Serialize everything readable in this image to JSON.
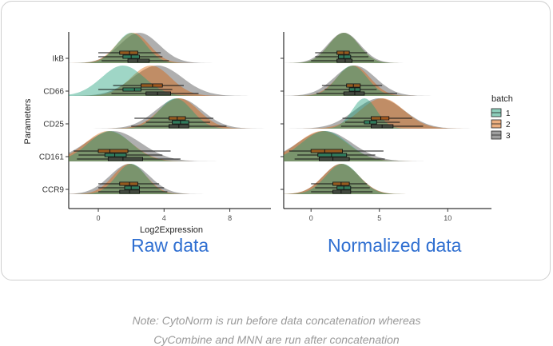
{
  "chart_data": {
    "type": "ridgeline-boxplot",
    "ylabel": "Parameters",
    "categories": [
      "IkB",
      "CD66",
      "CD25",
      "CD161",
      "CCR9"
    ],
    "legend": {
      "title": "batch",
      "entries": [
        "1",
        "2",
        "3"
      ],
      "placement": "right"
    },
    "colors": {
      "1": "#1b9e77",
      "2": "#d95f02",
      "3": "#404040"
    },
    "panels": [
      {
        "caption": "Raw data",
        "xlabel": "Log2Expression",
        "xticks": [
          0,
          4,
          8
        ],
        "xlim": [
          -1.8,
          10.5
        ],
        "rows": [
          {
            "marker": "IkB",
            "series": [
              {
                "batch": "1",
                "mode": 2.0,
                "sd": 0.9,
                "box": [
                  1.5,
                  2.0,
                  2.5
                ],
                "whisker": [
                  0.0,
                  3.9
                ]
              },
              {
                "batch": "2",
                "mode": 2.1,
                "sd": 1.0,
                "box": [
                  1.3,
                  1.9,
                  2.4
                ],
                "whisker": [
                  0.0,
                  3.8
                ]
              },
              {
                "batch": "3",
                "mode": 2.5,
                "sd": 1.2,
                "box": [
                  1.8,
                  2.4,
                  3.1
                ],
                "whisker": [
                  0.2,
                  4.3
                ]
              }
            ]
          },
          {
            "marker": "CD66",
            "series": [
              {
                "batch": "1",
                "mode": 1.5,
                "sd": 1.3,
                "box": [
                  1.5,
                  2.2,
                  2.6
                ],
                "whisker": [
                  0.0,
                  4.5
                ]
              },
              {
                "batch": "2",
                "mode": 3.2,
                "sd": 1.2,
                "box": [
                  2.6,
                  3.3,
                  3.9
                ],
                "whisker": [
                  0.9,
                  5.2
                ]
              },
              {
                "batch": "3",
                "mode": 3.6,
                "sd": 1.5,
                "box": [
                  2.9,
                  3.6,
                  4.4
                ],
                "whisker": [
                  0.8,
                  6.1
                ]
              }
            ]
          },
          {
            "marker": "CD25",
            "series": [
              {
                "batch": "1",
                "mode": 4.7,
                "sd": 1.0,
                "box": [
                  4.5,
                  5.0,
                  5.5
                ],
                "whisker": [
                  2.9,
                  6.8
                ]
              },
              {
                "batch": "2",
                "mode": 4.9,
                "sd": 1.2,
                "box": [
                  4.3,
                  4.8,
                  5.3
                ],
                "whisker": [
                  2.2,
                  7.0
                ]
              },
              {
                "batch": "3",
                "mode": 4.9,
                "sd": 1.4,
                "box": [
                  4.3,
                  4.9,
                  5.5
                ],
                "whisker": [
                  2.0,
                  7.8
                ]
              }
            ]
          },
          {
            "marker": "CD161",
            "series": [
              {
                "batch": "1",
                "mode": 0.7,
                "sd": 1.3,
                "box": [
                  0.4,
                  1.0,
                  1.7
                ],
                "whisker": [
                  -1.2,
                  3.9
                ]
              },
              {
                "batch": "2",
                "mode": 0.6,
                "sd": 1.4,
                "box": [
                  0.0,
                  0.7,
                  1.8
                ],
                "whisker": [
                  -1.5,
                  4.4
                ]
              },
              {
                "batch": "3",
                "mode": 0.9,
                "sd": 1.7,
                "box": [
                  0.6,
                  1.5,
                  2.7
                ],
                "whisker": [
                  -1.3,
                  5.0
                ]
              }
            ]
          },
          {
            "marker": "CCR9",
            "series": [
              {
                "batch": "1",
                "mode": 2.0,
                "sd": 0.9,
                "box": [
                  1.6,
                  2.0,
                  2.5
                ],
                "whisker": [
                  0.0,
                  4.0
                ]
              },
              {
                "batch": "2",
                "mode": 1.9,
                "sd": 1.0,
                "box": [
                  1.3,
                  1.9,
                  2.4
                ],
                "whisker": [
                  0.0,
                  3.7
                ]
              },
              {
                "batch": "3",
                "mode": 1.9,
                "sd": 1.2,
                "box": [
                  1.3,
                  1.9,
                  2.5
                ],
                "whisker": [
                  0.0,
                  4.2
                ]
              }
            ]
          }
        ]
      },
      {
        "caption": "Normalized data",
        "xlabel": "",
        "xticks": [
          0,
          5,
          10
        ],
        "xlim": [
          -2.0,
          13.2
        ],
        "rows": [
          {
            "marker": "IkB",
            "series": [
              {
                "batch": "1",
                "mode": 2.4,
                "sd": 1.1,
                "box": [
                  2.0,
                  2.4,
                  2.9
                ],
                "whisker": [
                  0.3,
                  4.2
                ]
              },
              {
                "batch": "2",
                "mode": 2.4,
                "sd": 1.1,
                "box": [
                  1.9,
                  2.4,
                  2.8
                ],
                "whisker": [
                  0.3,
                  4.1
                ]
              },
              {
                "batch": "3",
                "mode": 2.4,
                "sd": 1.2,
                "box": [
                  1.9,
                  2.5,
                  3.0
                ],
                "whisker": [
                  0.0,
                  4.6
                ]
              }
            ]
          },
          {
            "marker": "CD66",
            "series": [
              {
                "batch": "1",
                "mode": 3.0,
                "sd": 1.1,
                "box": [
                  2.8,
                  3.2,
                  3.6
                ],
                "whisker": [
                  1.0,
                  4.8
                ]
              },
              {
                "batch": "2",
                "mode": 3.1,
                "sd": 1.2,
                "box": [
                  2.6,
                  3.1,
                  3.6
                ],
                "whisker": [
                  0.8,
                  5.2
                ]
              },
              {
                "batch": "3",
                "mode": 3.2,
                "sd": 1.5,
                "box": [
                  2.4,
                  3.2,
                  3.9
                ],
                "whisker": [
                  0.4,
                  6.3
                ]
              }
            ]
          },
          {
            "marker": "CD25",
            "series": [
              {
                "batch": "1",
                "mode": 3.9,
                "sd": 0.9,
                "box": [
                  3.9,
                  4.3,
                  4.8
                ],
                "whisker": [
                  2.5,
                  6.5
                ]
              },
              {
                "batch": "2",
                "mode": 5.2,
                "sd": 1.6,
                "box": [
                  4.4,
                  5.1,
                  5.7
                ],
                "whisker": [
                  2.3,
                  7.4
                ]
              },
              {
                "batch": "3",
                "mode": 5.0,
                "sd": 1.8,
                "box": [
                  4.4,
                  5.2,
                  6.0
                ],
                "whisker": [
                  2.2,
                  8.2
                ]
              }
            ]
          },
          {
            "marker": "CD161",
            "series": [
              {
                "batch": "1",
                "mode": 1.0,
                "sd": 1.7,
                "box": [
                  0.5,
                  1.5,
                  2.6
                ],
                "whisker": [
                  -1.0,
                  4.7
                ]
              },
              {
                "batch": "2",
                "mode": 0.8,
                "sd": 1.8,
                "box": [
                  0.0,
                  1.0,
                  2.3
                ],
                "whisker": [
                  -1.6,
                  5.3
                ]
              },
              {
                "batch": "3",
                "mode": 1.0,
                "sd": 2.0,
                "box": [
                  0.6,
                  1.6,
                  2.8
                ],
                "whisker": [
                  -1.2,
                  5.4
                ]
              }
            ]
          },
          {
            "marker": "CCR9",
            "series": [
              {
                "batch": "1",
                "mode": 2.3,
                "sd": 1.2,
                "box": [
                  1.9,
                  2.4,
                  2.9
                ],
                "whisker": [
                  0.3,
                  4.3
                ]
              },
              {
                "batch": "2",
                "mode": 2.2,
                "sd": 1.3,
                "box": [
                  1.6,
                  2.2,
                  2.8
                ],
                "whisker": [
                  0.0,
                  4.1
                ]
              },
              {
                "batch": "3",
                "mode": 2.2,
                "sd": 1.3,
                "box": [
                  1.6,
                  2.2,
                  2.9
                ],
                "whisker": [
                  0.0,
                  4.5
                ]
              }
            ]
          }
        ]
      }
    ]
  },
  "note": {
    "line1": "Note: CytoNorm is run before data concatenation whereas",
    "line2": "CyCombine and MNN are run after concatenation"
  }
}
